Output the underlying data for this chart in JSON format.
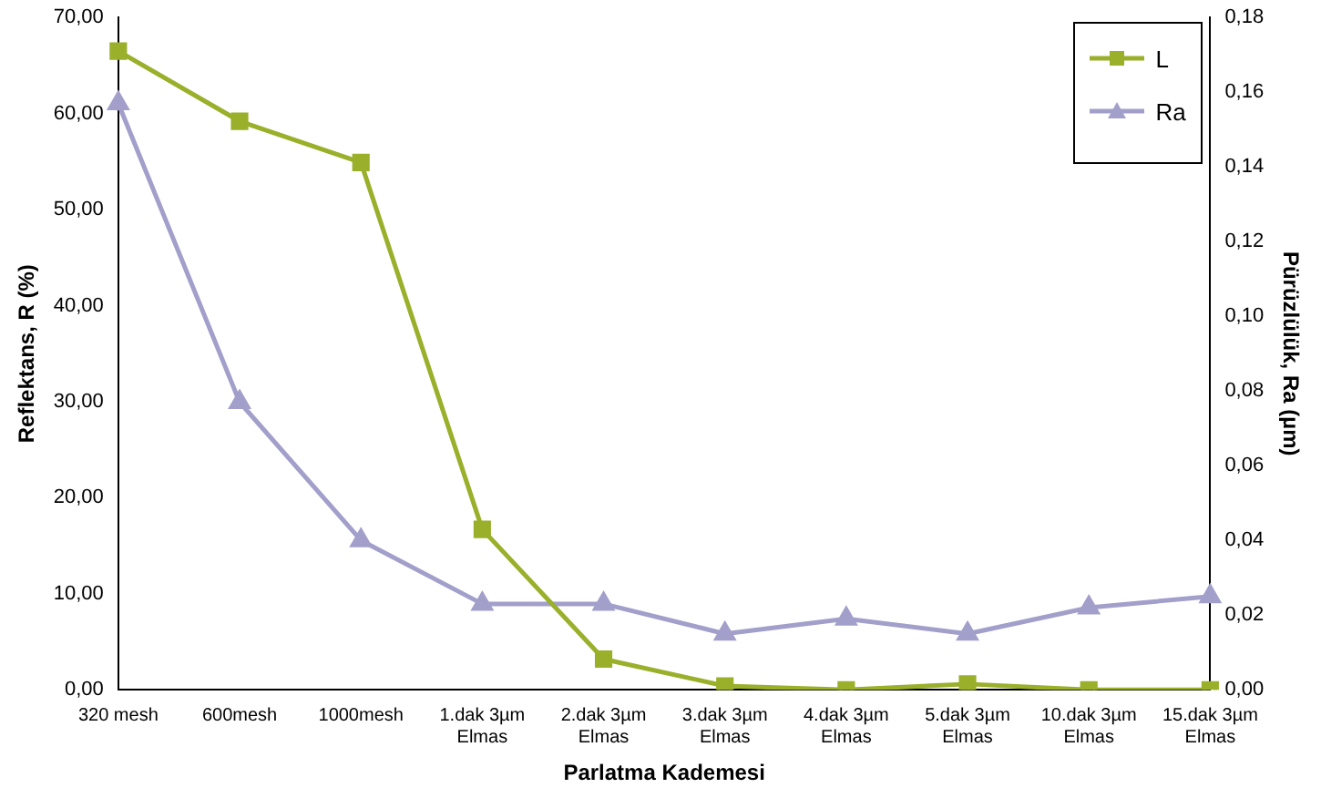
{
  "chart_data": {
    "type": "line",
    "xlabel": "Parlatma Kademesi",
    "ylabel": "Reflektans, R (%)",
    "y2label": "Pürüzlülük, Ra (µm)",
    "categories": [
      "320 mesh",
      "600mesh",
      "1000mesh",
      "1.dak 3µm\nElmas",
      "2.dak 3µm\nElmas",
      "3.dak 3µm\nElmas",
      "4.dak 3µm\nElmas",
      "5.dak 3µm\nElmas",
      "10.dak 3µm\nElmas",
      "15.dak 3µm\nElmas"
    ],
    "series": [
      {
        "name": "L",
        "color": "#9aaf2a",
        "marker": "square",
        "values": [
          66.5,
          59.2,
          54.9,
          16.7,
          3.2,
          0.4,
          0,
          0.6,
          0,
          0
        ]
      },
      {
        "name": "Ra",
        "color": "#a29fcb",
        "marker": "triangle",
        "axis": "y2",
        "values": [
          0.157,
          0.077,
          0.04,
          0.023,
          0.023,
          0.015,
          0.019,
          0.015,
          0.022,
          0.025
        ]
      }
    ],
    "ylim": [
      0,
      70
    ],
    "yticks": [
      {
        "value": 0,
        "label": "0,00"
      },
      {
        "value": 10,
        "label": "10,00"
      },
      {
        "value": 20,
        "label": "20,00"
      },
      {
        "value": 30,
        "label": "30,00"
      },
      {
        "value": 40,
        "label": "40,00"
      },
      {
        "value": 50,
        "label": "50,00"
      },
      {
        "value": 60,
        "label": "60,00"
      },
      {
        "value": 70,
        "label": "70,00"
      }
    ],
    "y2lim": [
      0,
      0.18
    ],
    "y2ticks": [
      {
        "value": 0,
        "label": "0,00"
      },
      {
        "value": 0.02,
        "label": "0,02"
      },
      {
        "value": 0.04,
        "label": "0,04"
      },
      {
        "value": 0.06,
        "label": "0,06"
      },
      {
        "value": 0.08,
        "label": "0,08"
      },
      {
        "value": 0.1,
        "label": "0,10"
      },
      {
        "value": 0.12,
        "label": "0,12"
      },
      {
        "value": 0.14,
        "label": "0,14"
      },
      {
        "value": 0.16,
        "label": "0,16"
      },
      {
        "value": 0.18,
        "label": "0,18"
      }
    ],
    "legend": "top right",
    "line_style": "solid"
  }
}
